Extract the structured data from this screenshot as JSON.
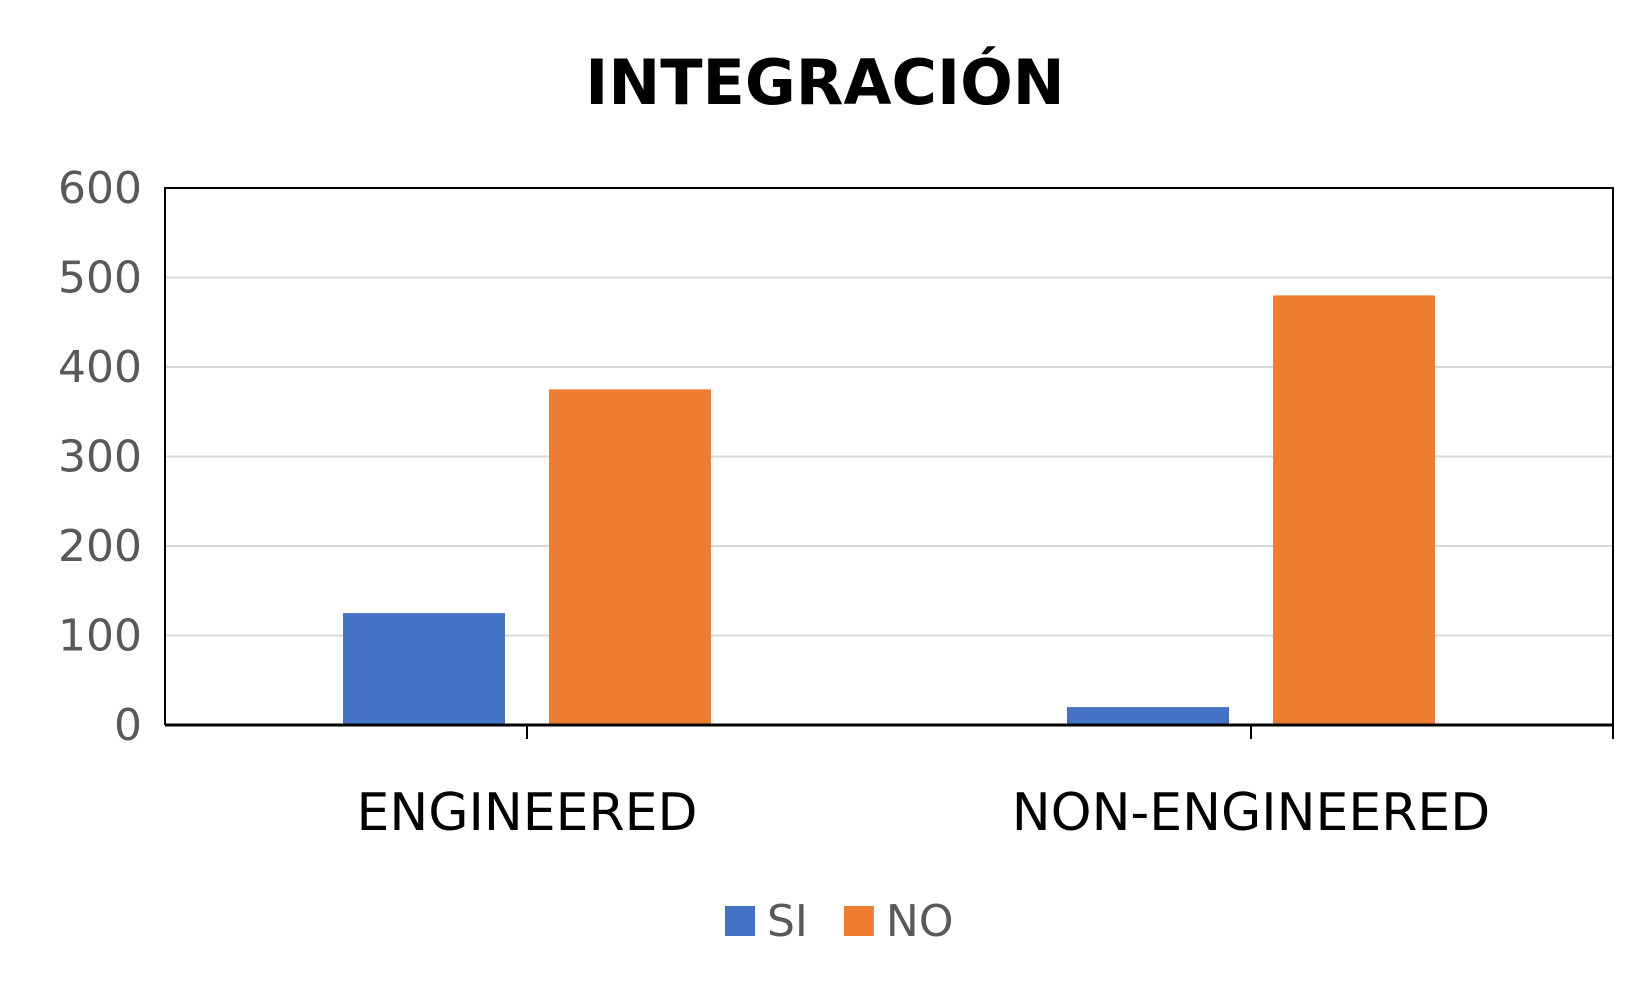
{
  "chart_data": {
    "type": "bar",
    "title": "INTEGRACIÓN",
    "categories": [
      "ENGINEERED",
      "NON-ENGINEERED"
    ],
    "series": [
      {
        "name": "SI",
        "values": [
          125,
          20
        ],
        "color": "#4472C4"
      },
      {
        "name": "NO",
        "values": [
          375,
          480
        ],
        "color": "#ED7D31"
      }
    ],
    "ylim": [
      0,
      600
    ],
    "yticks": [
      0,
      100,
      200,
      300,
      400,
      500,
      600
    ],
    "grid": true,
    "legend": "bottom-center",
    "xlabel": "",
    "ylabel": ""
  }
}
